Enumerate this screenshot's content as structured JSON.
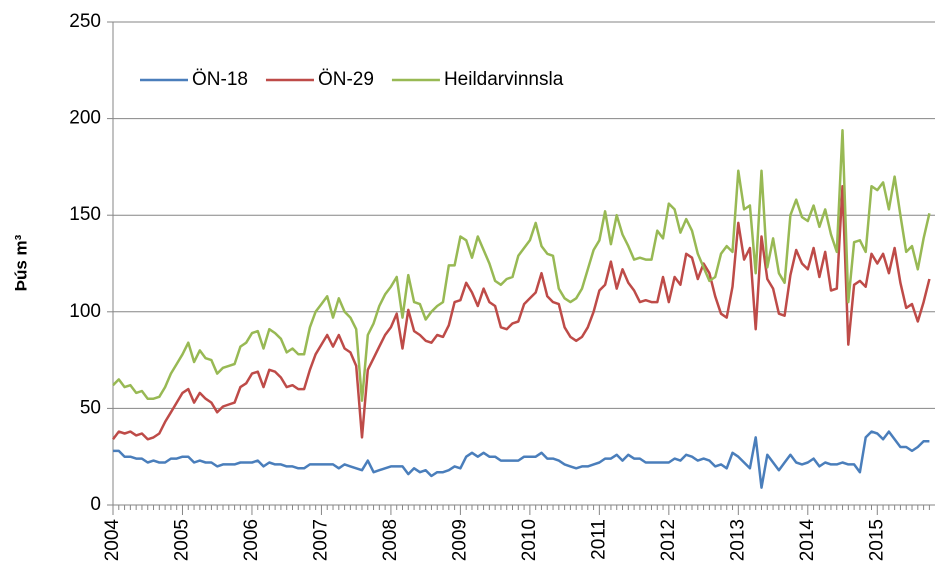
{
  "chart_data": {
    "type": "line",
    "ylabel": "Þús m³",
    "categories": [
      "2004",
      null,
      null,
      null,
      null,
      null,
      null,
      null,
      null,
      null,
      null,
      null,
      "2005",
      null,
      null,
      null,
      null,
      null,
      null,
      null,
      null,
      null,
      null,
      null,
      "2006",
      null,
      null,
      null,
      null,
      null,
      null,
      null,
      null,
      null,
      null,
      null,
      "2007",
      null,
      null,
      null,
      null,
      null,
      null,
      null,
      null,
      null,
      null,
      null,
      "2008",
      null,
      null,
      null,
      null,
      null,
      null,
      null,
      null,
      null,
      null,
      null,
      "2009",
      null,
      null,
      null,
      null,
      null,
      null,
      null,
      null,
      null,
      null,
      null,
      "2010",
      null,
      null,
      null,
      null,
      null,
      null,
      null,
      null,
      null,
      null,
      null,
      "2011",
      null,
      null,
      null,
      null,
      null,
      null,
      null,
      null,
      null,
      null,
      null,
      "2012",
      null,
      null,
      null,
      null,
      null,
      null,
      null,
      null,
      null,
      null,
      null,
      "2013",
      null,
      null,
      null,
      null,
      null,
      null,
      null,
      null,
      null,
      null,
      null,
      "2014",
      null,
      null,
      null,
      null,
      null,
      null,
      null,
      null,
      null,
      null,
      null,
      "2015",
      null,
      null,
      null,
      null,
      null,
      null,
      null,
      null,
      null
    ],
    "series": [
      {
        "name": "ÖN-18",
        "color": "#4a7ebb",
        "values": [
          28,
          28,
          25,
          25,
          24,
          24,
          22,
          23,
          22,
          22,
          24,
          24,
          25,
          25,
          22,
          23,
          22,
          22,
          20,
          21,
          21,
          21,
          22,
          22,
          22,
          23,
          20,
          22,
          21,
          21,
          20,
          20,
          19,
          19,
          21,
          21,
          21,
          21,
          21,
          19,
          21,
          20,
          19,
          18,
          23,
          17,
          18,
          19,
          20,
          20,
          20,
          16,
          19,
          17,
          18,
          15,
          17,
          17,
          18,
          20,
          19,
          25,
          27,
          25,
          27,
          25,
          25,
          23,
          23,
          23,
          23,
          25,
          25,
          25,
          27,
          24,
          24,
          23,
          21,
          20,
          19,
          20,
          20,
          21,
          22,
          24,
          24,
          26,
          23,
          26,
          24,
          24,
          22,
          22,
          22,
          22,
          22,
          24,
          23,
          26,
          25,
          23,
          24,
          23,
          20,
          21,
          19,
          27,
          25,
          22,
          19,
          35,
          9,
          26,
          22,
          18,
          22,
          26,
          22,
          21,
          22,
          24,
          20,
          22,
          21,
          21,
          22,
          21,
          21,
          17,
          35,
          38,
          37,
          34,
          38,
          34,
          30,
          30,
          28,
          30,
          33,
          33
        ]
      },
      {
        "name": "ÖN-29",
        "color": "#be4b48",
        "values": [
          34,
          38,
          37,
          38,
          36,
          37,
          34,
          35,
          37,
          43,
          48,
          53,
          58,
          60,
          53,
          58,
          55,
          53,
          48,
          51,
          52,
          53,
          61,
          63,
          68,
          69,
          61,
          70,
          69,
          66,
          61,
          62,
          60,
          60,
          70,
          78,
          83,
          88,
          82,
          88,
          81,
          79,
          72,
          35,
          70,
          76,
          82,
          88,
          92,
          99,
          81,
          101,
          90,
          88,
          85,
          84,
          88,
          87,
          93,
          105,
          106,
          115,
          110,
          103,
          112,
          105,
          103,
          92,
          91,
          94,
          95,
          104,
          107,
          110,
          120,
          108,
          105,
          104,
          92,
          87,
          85,
          87,
          92,
          100,
          111,
          114,
          126,
          112,
          122,
          115,
          111,
          105,
          106,
          105,
          105,
          118,
          105,
          118,
          114,
          130,
          128,
          117,
          125,
          120,
          108,
          99,
          97,
          113,
          146,
          127,
          133,
          91,
          139,
          117,
          112,
          99,
          98,
          119,
          132,
          125,
          122,
          133,
          118,
          131,
          111,
          112,
          165,
          83,
          114,
          116,
          113,
          130,
          125,
          130,
          120,
          133,
          115,
          102,
          104,
          95,
          105,
          117
        ]
      },
      {
        "name": "Heildarvinnsla",
        "color": "#98b954",
        "values": [
          62,
          65,
          61,
          62,
          58,
          59,
          55,
          55,
          56,
          61,
          68,
          73,
          78,
          84,
          74,
          80,
          76,
          75,
          68,
          71,
          72,
          73,
          82,
          84,
          89,
          90,
          81,
          91,
          89,
          86,
          79,
          81,
          78,
          78,
          92,
          100,
          104,
          108,
          97,
          107,
          100,
          97,
          91,
          54,
          88,
          94,
          103,
          109,
          113,
          118,
          97,
          119,
          105,
          104,
          96,
          100,
          103,
          105,
          124,
          124,
          139,
          137,
          128,
          139,
          132,
          125,
          116,
          114,
          117,
          118,
          129,
          133,
          137,
          146,
          134,
          130,
          129,
          112,
          107,
          105,
          107,
          112,
          122,
          132,
          137,
          152,
          135,
          150,
          140,
          134,
          127,
          128,
          127,
          127,
          142,
          138,
          156,
          153,
          141,
          148,
          142,
          130,
          123,
          116,
          118,
          130,
          134,
          131,
          173,
          153,
          155,
          120,
          173,
          123,
          138,
          120,
          115,
          150,
          158,
          149,
          147,
          155,
          144,
          153,
          140,
          131,
          194,
          105,
          136,
          137,
          131,
          165,
          163,
          167,
          153,
          170,
          150,
          131,
          134,
          122,
          138,
          151
        ]
      }
    ],
    "ylim": [
      0,
      250
    ],
    "yticks": [
      0,
      50,
      100,
      150,
      200,
      250
    ],
    "grid": true
  }
}
